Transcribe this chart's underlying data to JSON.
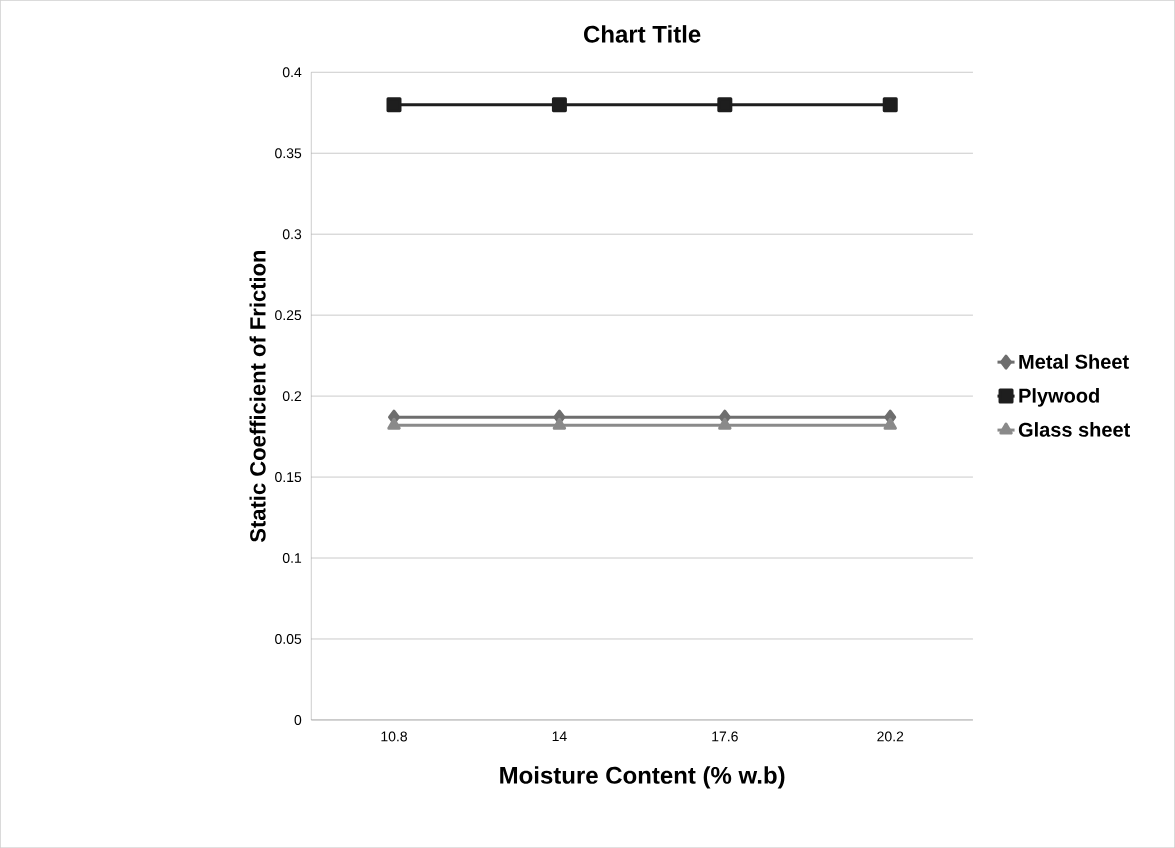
{
  "chart_data": {
    "type": "line",
    "title": "Chart Title",
    "xlabel": "Moisture Content (% w.b)",
    "ylabel": "Static Coefficient of Friction",
    "categories": [
      "10.8",
      "14",
      "17.6",
      "20.2"
    ],
    "series": [
      {
        "name": "Metal Sheet",
        "color": "#6e6e6e",
        "marker": "diamond",
        "values": [
          0.187,
          0.187,
          0.187,
          0.187
        ]
      },
      {
        "name": "Plywood",
        "color": "#1e1e1e",
        "marker": "square",
        "values": [
          0.38,
          0.38,
          0.38,
          0.38
        ]
      },
      {
        "name": "Glass sheet",
        "color": "#8a8a8a",
        "marker": "triangle",
        "values": [
          0.182,
          0.182,
          0.182,
          0.182
        ]
      }
    ],
    "ylim": [
      0,
      0.4
    ],
    "yticks": [
      0,
      0.05,
      0.1,
      0.15,
      0.2,
      0.25,
      0.3,
      0.35,
      0.4
    ],
    "grid": "y",
    "legend": "right",
    "line_style": "solid"
  }
}
